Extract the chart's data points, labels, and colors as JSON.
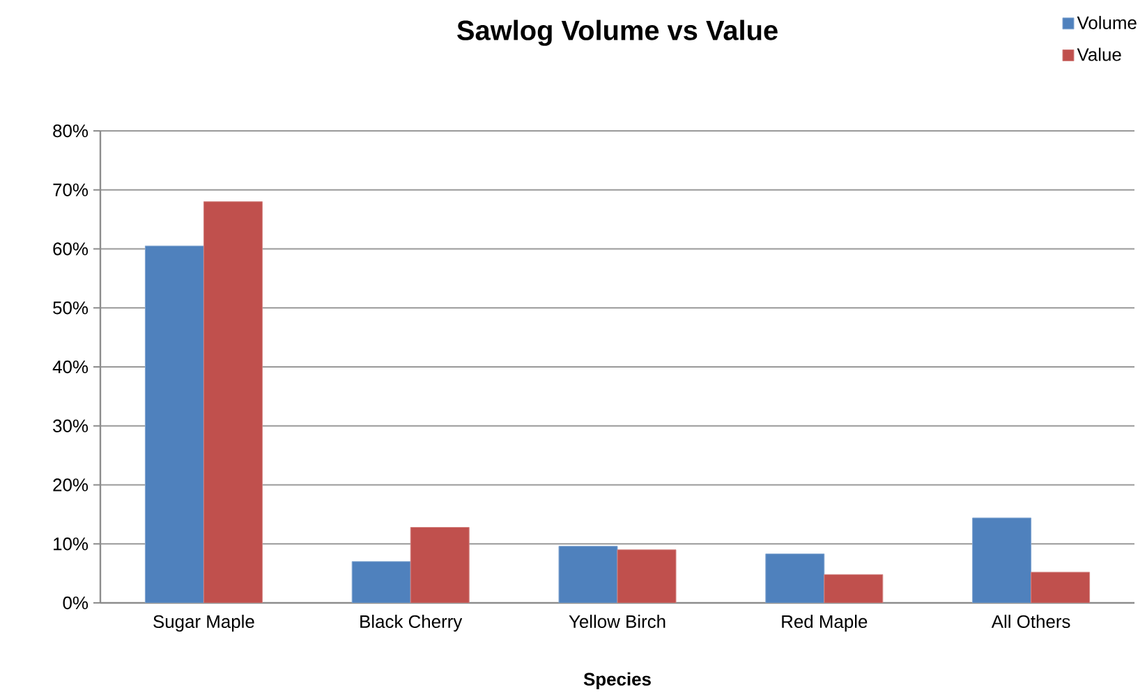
{
  "chart_data": {
    "type": "bar",
    "title": "Sawlog Volume vs Value",
    "xlabel": "Species",
    "categories": [
      "Sugar Maple",
      "Black Cherry",
      "Yellow Birch",
      "Red Maple",
      "All Others"
    ],
    "series": [
      {
        "name": "Volume",
        "color": "#4f81bd",
        "values": [
          60.5,
          7,
          9.6,
          8.3,
          14.4
        ]
      },
      {
        "name": "Value",
        "color": "#c0504d",
        "values": [
          68,
          12.8,
          9,
          4.8,
          5.2
        ]
      }
    ],
    "ylim": [
      0,
      80
    ],
    "yticks": [
      {
        "value": 0,
        "label": "0%"
      },
      {
        "value": 10,
        "label": "10%"
      },
      {
        "value": 20,
        "label": "20%"
      },
      {
        "value": 30,
        "label": "30%"
      },
      {
        "value": 40,
        "label": "40%"
      },
      {
        "value": 50,
        "label": "50%"
      },
      {
        "value": 60,
        "label": "60%"
      },
      {
        "value": 70,
        "label": "70%"
      },
      {
        "value": 80,
        "label": "80%"
      }
    ],
    "grid": "y",
    "legend": "top right"
  }
}
